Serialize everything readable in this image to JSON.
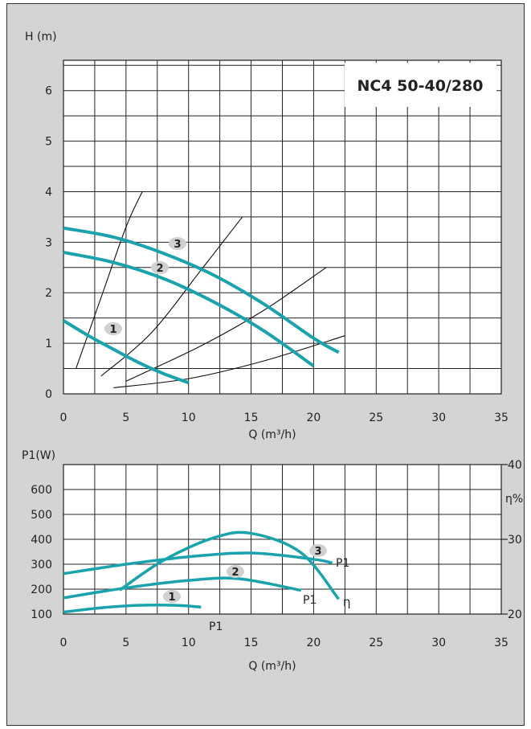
{
  "colors": {
    "curve": "#1aa3ad",
    "grid": "#222222",
    "plot_bg": "#ffffff",
    "page_bg": "#d4d4d5",
    "badge": "#d0d0d0"
  },
  "chart_data": [
    {
      "type": "line",
      "title": "NC4 50-40/280",
      "ylabel": "H (m)",
      "xlabel": "Q (m³/h)",
      "xlim": [
        0,
        35
      ],
      "ylim": [
        0,
        6.6
      ],
      "xticks": [
        "0",
        "5",
        "10",
        "15",
        "20",
        "25",
        "30",
        "35"
      ],
      "yticks": [
        "0",
        "1",
        "2",
        "3",
        "4",
        "5",
        "6"
      ],
      "grid": true,
      "series": [
        {
          "name": "1",
          "x": [
            0,
            2,
            4,
            6,
            8,
            10
          ],
          "y": [
            1.45,
            1.15,
            0.88,
            0.62,
            0.4,
            0.22
          ]
        },
        {
          "name": "2",
          "x": [
            0,
            4,
            8,
            12,
            16,
            20
          ],
          "y": [
            2.8,
            2.6,
            2.28,
            1.82,
            1.25,
            0.55
          ]
        },
        {
          "name": "3",
          "x": [
            0,
            4,
            8,
            12,
            16,
            20,
            22
          ],
          "y": [
            3.28,
            3.1,
            2.78,
            2.35,
            1.78,
            1.1,
            0.82
          ]
        }
      ],
      "system_curves": [
        {
          "x": [
            1,
            3,
            5,
            6.3
          ],
          "y": [
            0.5,
            1.9,
            3.3,
            4.0
          ]
        },
        {
          "x": [
            3,
            7,
            11,
            14.3
          ],
          "y": [
            0.35,
            1.2,
            2.45,
            3.5
          ]
        },
        {
          "x": [
            5,
            11,
            16,
            21
          ],
          "y": [
            0.25,
            0.95,
            1.65,
            2.5
          ]
        },
        {
          "x": [
            4,
            10,
            16,
            22.5
          ],
          "y": [
            0.12,
            0.3,
            0.65,
            1.15
          ]
        }
      ]
    },
    {
      "type": "line",
      "ylabel": "P1(W)",
      "y2label": "η%",
      "xlabel": "Q (m³/h)",
      "xlim": [
        0,
        35
      ],
      "ylim": [
        100,
        700
      ],
      "y2lim": [
        20,
        40
      ],
      "xticks": [
        "0",
        "5",
        "10",
        "15",
        "20",
        "25",
        "30",
        "35"
      ],
      "yticks": [
        "100",
        "200",
        "300",
        "400",
        "500",
        "600"
      ],
      "y2ticks": [
        "20",
        "30",
        "40"
      ],
      "grid": true,
      "series": [
        {
          "name": "1",
          "x": [
            0,
            3,
            6,
            9,
            11
          ],
          "y": [
            108,
            125,
            135,
            135,
            128
          ]
        },
        {
          "name": "2",
          "x": [
            0,
            5,
            10,
            14,
            19
          ],
          "y": [
            165,
            205,
            235,
            242,
            195
          ]
        },
        {
          "name": "3",
          "x": [
            0,
            5,
            10,
            15,
            20,
            21.5
          ],
          "y": [
            262,
            300,
            330,
            345,
            320,
            305
          ]
        },
        {
          "name": "η",
          "axis": "y2",
          "x": [
            4.5,
            8,
            12,
            15,
            19,
            22
          ],
          "y": [
            23.2,
            27.2,
            30.2,
            30.8,
            28.2,
            22
          ]
        }
      ],
      "labels": {
        "p1_a": "P1",
        "p1_b": "P1",
        "p1_c": "P1",
        "eta": "η"
      }
    }
  ]
}
